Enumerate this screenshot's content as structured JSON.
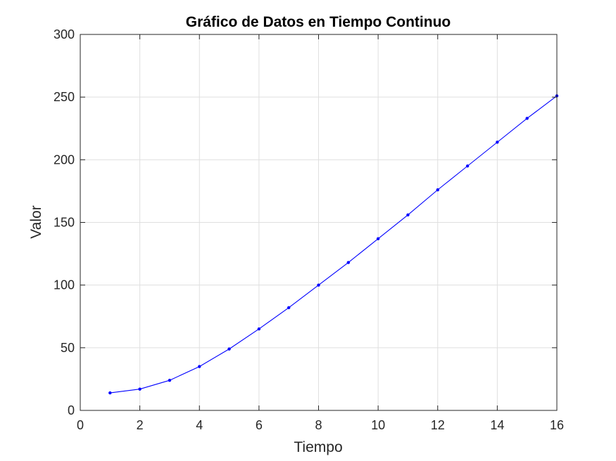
{
  "chart_data": {
    "type": "line",
    "title": "Gráfico de Datos en Tiempo Continuo",
    "xlabel": "Tiempo",
    "ylabel": "Valor",
    "xlim": [
      0,
      16
    ],
    "ylim": [
      0,
      300
    ],
    "xticks": [
      0,
      2,
      4,
      6,
      8,
      10,
      12,
      14,
      16
    ],
    "yticks": [
      0,
      50,
      100,
      150,
      200,
      250,
      300
    ],
    "xtick_labels": [
      "0",
      "2",
      "4",
      "6",
      "8",
      "10",
      "12",
      "14",
      "16"
    ],
    "ytick_labels": [
      "0",
      "50",
      "100",
      "150",
      "200",
      "250",
      "300"
    ],
    "grid": true,
    "series": [
      {
        "color": "#0000ff",
        "marker": "dot",
        "x": [
          1,
          2,
          3,
          4,
          5,
          6,
          7,
          8,
          9,
          10,
          11,
          12,
          13,
          14,
          15,
          16
        ],
        "y": [
          14,
          17,
          24,
          35,
          49,
          65,
          82,
          100,
          118,
          137,
          156,
          176,
          195,
          214,
          233,
          251
        ]
      }
    ]
  }
}
